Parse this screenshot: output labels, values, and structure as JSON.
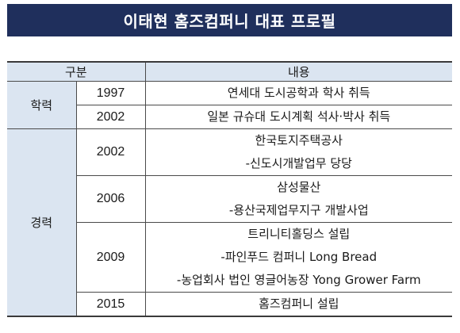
{
  "title": "이태현 홈즈컴퍼니 대표 프로필",
  "table": {
    "headers": {
      "category": "구분",
      "content": "내용"
    },
    "education": {
      "label": "학력",
      "rows": [
        {
          "year": "1997",
          "lines": [
            "연세대 도시공학과 학사 취득"
          ]
        },
        {
          "year": "2002",
          "lines": [
            "일본 규슈대 도시계획 석사·박사 취득"
          ]
        }
      ]
    },
    "career": {
      "label": "경력",
      "rows": [
        {
          "year": "2002",
          "lines": [
            "한국토지주택공사",
            "-신도시개발업무 당당"
          ]
        },
        {
          "year": "2006",
          "lines": [
            "삼성물산",
            "-용산국제업무지구 개발사업"
          ]
        },
        {
          "year": "2009",
          "lines": [
            "트리니티홀딩스 설립",
            "-파인푸드 컴퍼니 Long Bread",
            "-농업회사 법인 영글어농장 Yong Grower Farm"
          ]
        },
        {
          "year": "2015",
          "lines": [
            "홈즈컴퍼니 설립"
          ]
        }
      ]
    }
  }
}
